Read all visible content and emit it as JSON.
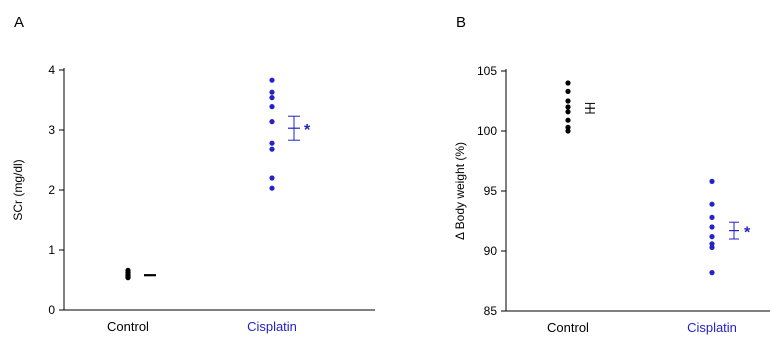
{
  "chart_data": [
    {
      "panel": "A",
      "type": "scatter",
      "ylabel": "SCr (mg/dl)",
      "ylim": [
        0,
        4
      ],
      "yticks": [
        0,
        1,
        2,
        3,
        4
      ],
      "yticklabels": [
        "0",
        "1",
        "2",
        "3",
        "4"
      ],
      "categories": [
        "Control",
        "Cisplatin"
      ],
      "category_colors": [
        "#000000",
        "#2323c8"
      ],
      "series": [
        {
          "category": "Control",
          "color": "#000000",
          "values": [
            0.66,
            0.63,
            0.6,
            0.58,
            0.57,
            0.56,
            0.55,
            0.54
          ],
          "mean": 0.58,
          "sem": 0.01
        },
        {
          "category": "Cisplatin",
          "color": "#2323c8",
          "values": [
            3.83,
            3.63,
            3.54,
            3.39,
            3.14,
            2.78,
            2.68,
            2.2,
            2.03
          ],
          "mean": 3.03,
          "sem": 0.2
        }
      ],
      "annotations": [
        {
          "category": "Cisplatin",
          "text": "*",
          "color": "#2323c8"
        }
      ]
    },
    {
      "panel": "B",
      "type": "scatter",
      "ylabel": "Δ Body weight (%)",
      "ylim": [
        85,
        105
      ],
      "yticks": [
        85,
        90,
        95,
        100,
        105
      ],
      "yticklabels": [
        "85",
        "90",
        "95",
        "100",
        "105"
      ],
      "categories": [
        "Control",
        "Cisplatin"
      ],
      "category_colors": [
        "#000000",
        "#2323c8"
      ],
      "series": [
        {
          "category": "Control",
          "color": "#000000",
          "values": [
            104.0,
            103.3,
            102.5,
            102.0,
            101.6,
            100.9,
            100.3,
            100.0
          ],
          "mean": 101.9,
          "sem": 0.4
        },
        {
          "category": "Cisplatin",
          "color": "#2323c8",
          "values": [
            95.8,
            93.9,
            92.8,
            92.0,
            91.2,
            90.6,
            90.3,
            88.2
          ],
          "mean": 91.7,
          "sem": 0.7
        }
      ],
      "annotations": [
        {
          "category": "Cisplatin",
          "text": "*",
          "color": "#2323c8"
        }
      ]
    }
  ]
}
